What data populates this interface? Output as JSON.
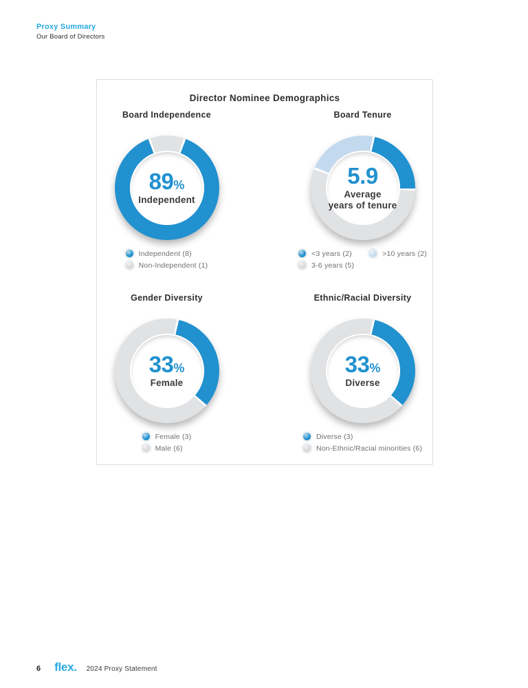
{
  "page": {
    "eyebrow": "Proxy Summary",
    "section": "Our Board of Directors",
    "footer": {
      "page_number": "6",
      "logo": "flex.",
      "label": "2024 Proxy Statement"
    }
  },
  "card": {
    "title": "Director Nominee Demographics"
  },
  "colors": {
    "accent_cyan": "#29a9e1",
    "chart_blue": "#2191cf",
    "chart_light_blue": "#c3daee",
    "chart_gray": "#e1e2e4",
    "heading_text": "#2e2e30",
    "legend_text": "#6d6e71",
    "card_border": "#dcdcdd"
  },
  "chart_data": [
    {
      "type": "donut",
      "title": "Board Independence",
      "center": {
        "value": "89",
        "unit": "%",
        "label": "Independent"
      },
      "total": 9,
      "start_deg": -20,
      "slices": [
        {
          "name": "Non-Independent",
          "count": 1,
          "color": "#e1e2e4"
        },
        {
          "name": "Independent",
          "count": 8,
          "color": "#2191cf"
        }
      ],
      "legend": [
        {
          "label": "Independent (8)",
          "color": "#2191cf"
        },
        {
          "label": "Non-Independent (1)",
          "color": "#d7d8da"
        }
      ]
    },
    {
      "type": "donut",
      "title": "Board Tenure",
      "center": {
        "value": "5.9",
        "unit": "",
        "label": "Average\nyears of tenure"
      },
      "total": 9,
      "start_deg": 12,
      "slices": [
        {
          "name": "<3 years",
          "count": 2,
          "color": "#2191cf"
        },
        {
          "name": "3-6 years",
          "count": 5,
          "color": "#e1e2e4"
        },
        {
          "name": ">10 years",
          "count": 2,
          "color": "#c3daee"
        }
      ],
      "legend": [
        {
          "label": "<3 years (2)",
          "color": "#2191cf"
        },
        {
          "label": "3-6 years (5)",
          "color": "#d7d8da"
        },
        {
          "label": ">10 years (2)",
          "color": "#c3daee"
        }
      ]
    },
    {
      "type": "donut",
      "title": "Gender Diversity",
      "center": {
        "value": "33",
        "unit": "%",
        "label": "Female"
      },
      "total": 9,
      "start_deg": 12,
      "slices": [
        {
          "name": "Female",
          "count": 3,
          "color": "#2191cf"
        },
        {
          "name": "Male",
          "count": 6,
          "color": "#e1e2e4"
        }
      ],
      "legend": [
        {
          "label": "Female (3)",
          "color": "#2191cf"
        },
        {
          "label": "Male (6)",
          "color": "#d7d8da"
        }
      ]
    },
    {
      "type": "donut",
      "title": "Ethnic/Racial Diversity",
      "center": {
        "value": "33",
        "unit": "%",
        "label": "Diverse"
      },
      "total": 9,
      "start_deg": 12,
      "slices": [
        {
          "name": "Diverse",
          "count": 3,
          "color": "#2191cf"
        },
        {
          "name": "Non-Ethnic/Racial minorities",
          "count": 6,
          "color": "#e1e2e4"
        }
      ],
      "legend": [
        {
          "label": "Diverse (3)",
          "color": "#2191cf"
        },
        {
          "label": "Non-Ethnic/Racial minorities (6)",
          "color": "#d7d8da"
        }
      ]
    }
  ]
}
